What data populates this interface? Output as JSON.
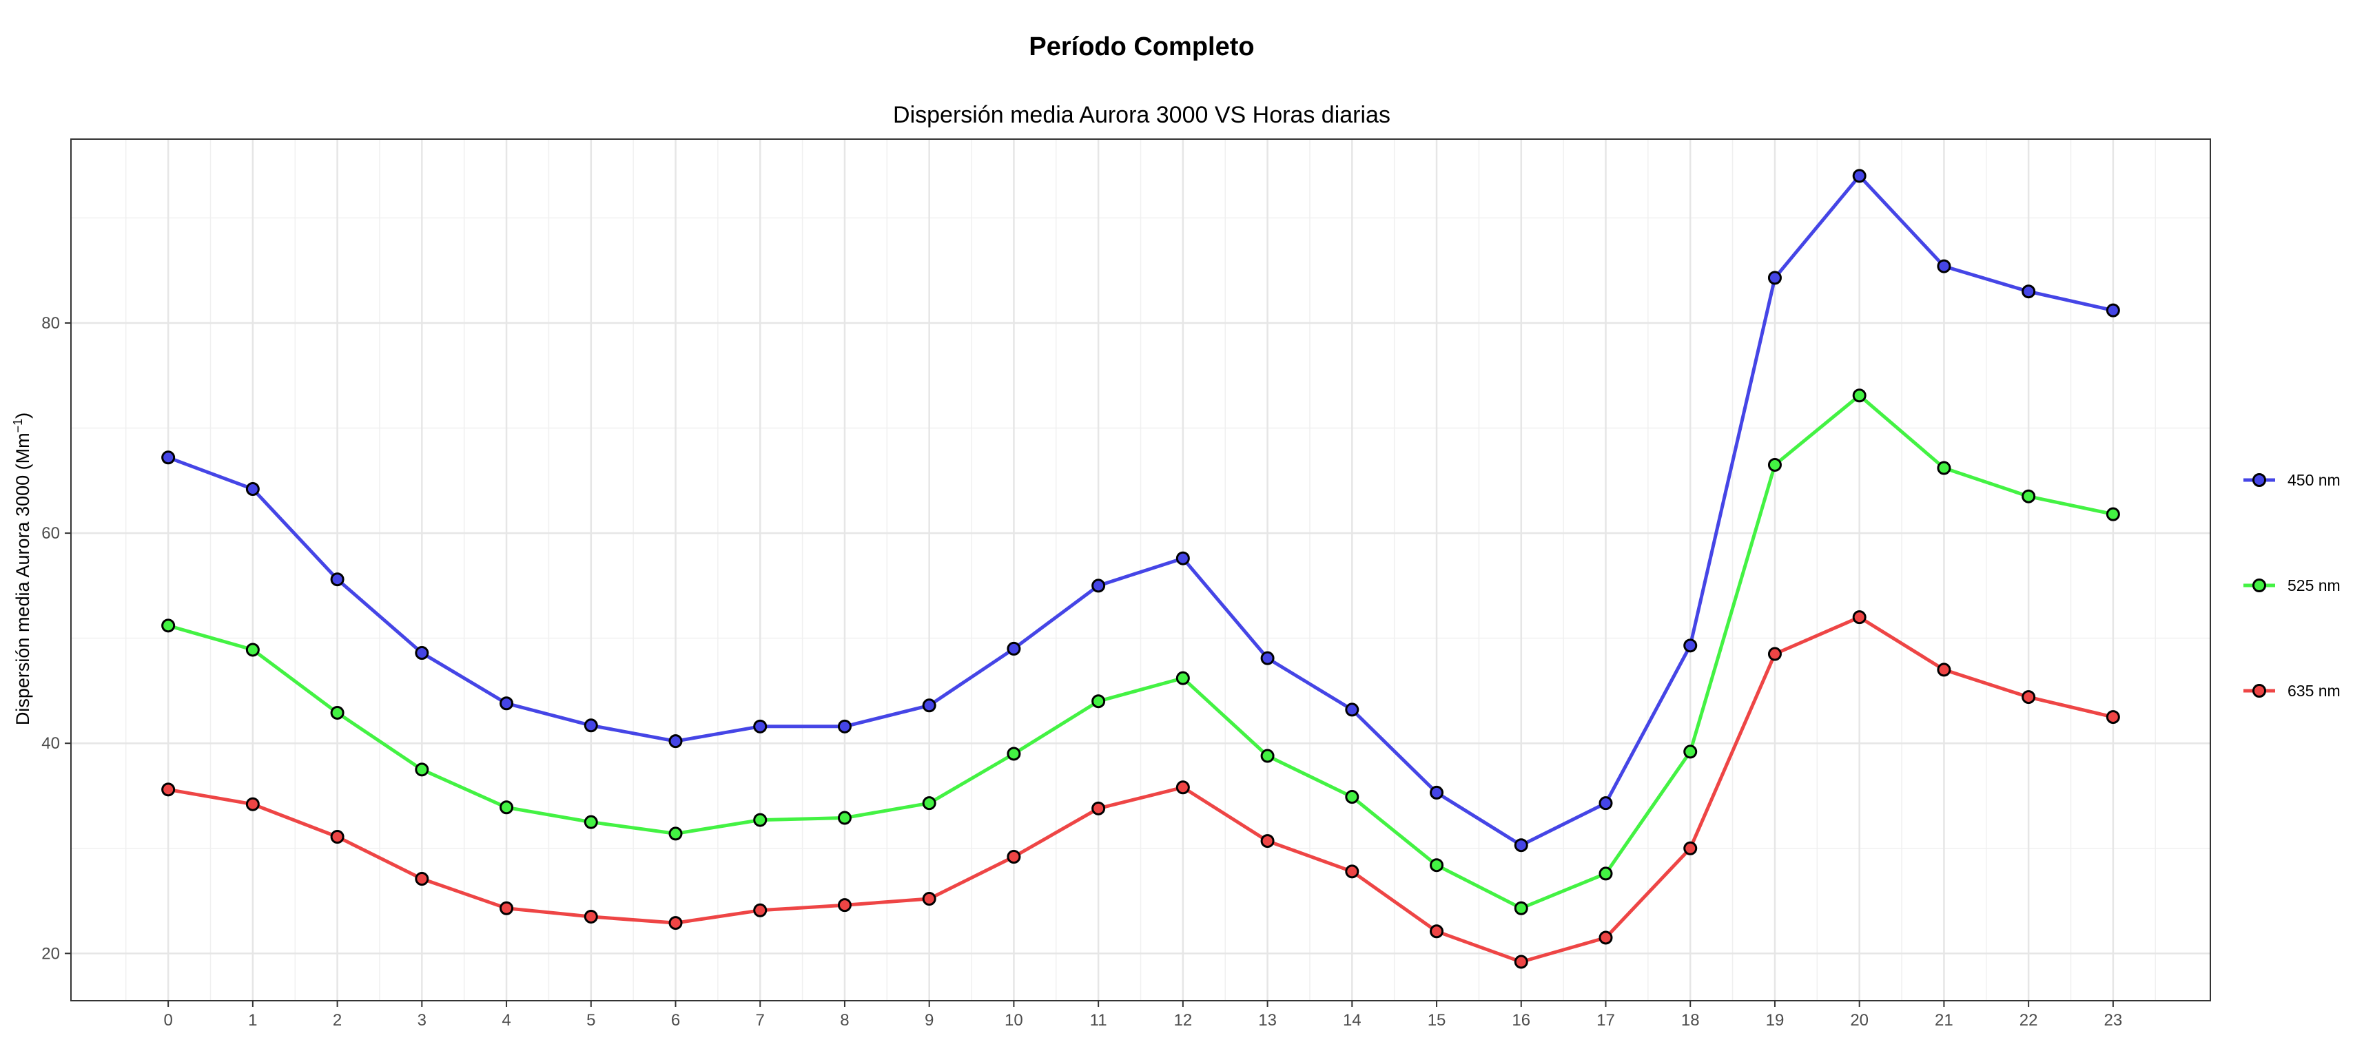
{
  "title": "Período Completo",
  "chart_data": {
    "type": "line",
    "subtitle": "Dispersión media Aurora 3000 VS Horas diarias",
    "xlabel": "",
    "ylabel": "Dispersión media Aurora 3000 (Mm",
    "ylabel_superscript": "−1",
    "ylabel_suffix": ")",
    "x": [
      0,
      1,
      2,
      3,
      4,
      5,
      6,
      7,
      8,
      9,
      10,
      11,
      12,
      13,
      14,
      15,
      16,
      17,
      18,
      19,
      20,
      21,
      22,
      23
    ],
    "xlim": [
      -1.15,
      24.15
    ],
    "ylim": [
      15.5,
      97.5
    ],
    "yticks": [
      20,
      40,
      60,
      80
    ],
    "grid": true,
    "legend_position": "right",
    "series": [
      {
        "name": "450 nm",
        "color": "#4545e6",
        "values": [
          67.2,
          64.2,
          55.6,
          48.6,
          43.8,
          41.7,
          40.2,
          41.6,
          41.6,
          43.6,
          49.0,
          55.0,
          57.6,
          48.1,
          43.2,
          35.3,
          30.3,
          34.3,
          49.3,
          84.3,
          94.0,
          85.4,
          83.0,
          81.2
        ]
      },
      {
        "name": "525 nm",
        "color": "#43f243",
        "values": [
          51.2,
          48.9,
          42.9,
          37.5,
          33.9,
          32.5,
          31.4,
          32.7,
          32.9,
          34.3,
          39.0,
          44.0,
          46.2,
          38.8,
          34.9,
          28.4,
          24.3,
          27.6,
          39.2,
          66.5,
          73.1,
          66.2,
          63.5,
          61.8
        ]
      },
      {
        "name": "635 nm",
        "color": "#ee4545",
        "values": [
          35.6,
          34.2,
          31.1,
          27.1,
          24.3,
          23.5,
          22.9,
          24.1,
          24.6,
          25.2,
          29.2,
          33.8,
          35.8,
          30.7,
          27.8,
          22.1,
          19.2,
          21.5,
          30.0,
          48.5,
          52.0,
          47.0,
          44.4,
          42.5
        ]
      }
    ]
  }
}
